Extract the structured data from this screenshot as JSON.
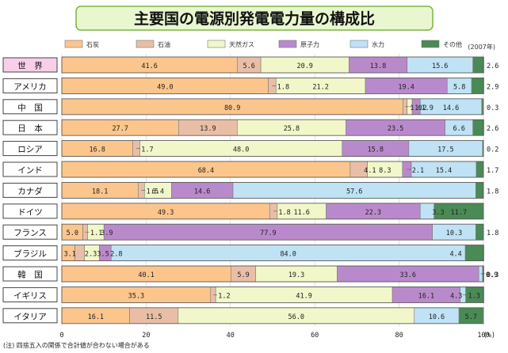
{
  "chart_data": {
    "type": "bar",
    "orientation": "horizontal",
    "stacked": true,
    "title": "主要国の電源別発電電力量の構成比",
    "year_note": "(2007年)",
    "note": "(注) 四捨五入の関係で合計値が合わない場合がある",
    "x_unit": "(%)",
    "xlim": [
      0,
      100
    ],
    "x_ticks": [
      0,
      20,
      40,
      60,
      80,
      100
    ],
    "legend_position": "top",
    "categories": [
      "世界",
      "アメリカ",
      "中国",
      "日本",
      "ロシア",
      "インド",
      "カナダ",
      "ドイツ",
      "フランス",
      "ブラジル",
      "韓国",
      "イギリス",
      "イタリア"
    ],
    "category_display": [
      "世　界",
      "アメリカ",
      "中　国",
      "日　本",
      "ロシア",
      "インド",
      "カナダ",
      "ドイツ",
      "フランス",
      "ブラジル",
      "韓　国",
      "イギリス",
      "イタリア"
    ],
    "series": [
      {
        "name": "石炭",
        "color": "#fbc58c",
        "values": [
          41.6,
          49.0,
          80.9,
          27.7,
          16.8,
          68.4,
          18.1,
          49.3,
          5.0,
          3.1,
          40.1,
          35.3,
          16.1
        ]
      },
      {
        "name": "石油",
        "color": "#e8bfa6",
        "values": [
          5.6,
          1.8,
          1.0,
          13.9,
          1.7,
          4.1,
          1.5,
          1.8,
          1.1,
          2.3,
          5.9,
          1.2,
          11.5
        ]
      },
      {
        "name": "天然ガス",
        "color": "#f1f7c9",
        "values": [
          20.9,
          21.2,
          1.2,
          25.8,
          48.0,
          8.3,
          6.4,
          11.6,
          3.9,
          3.5,
          19.3,
          41.9,
          56.0
        ]
      },
      {
        "name": "原子力",
        "color": "#b98acb",
        "values": [
          13.8,
          19.4,
          1.9,
          23.5,
          15.8,
          2.1,
          14.6,
          22.3,
          77.9,
          2.8,
          33.6,
          16.1,
          0.0
        ]
      },
      {
        "name": "水力",
        "color": "#bfe2f5",
        "values": [
          15.6,
          5.8,
          14.6,
          6.6,
          17.5,
          15.4,
          57.6,
          3.3,
          10.3,
          84.0,
          0.9,
          1.3,
          10.6
        ]
      },
      {
        "name": "その他",
        "color": "#4a8a55",
        "values": [
          2.6,
          2.9,
          0.3,
          2.6,
          0.2,
          1.7,
          1.8,
          11.7,
          1.8,
          4.4,
          0.3,
          4.3,
          5.7
        ]
      }
    ],
    "labels": {
      "coal": [
        "41.6",
        "49.0",
        "80.9",
        "27.7",
        "16.8",
        "68.4",
        "18.1",
        "49.3",
        "5.0",
        "3.1",
        "40.1",
        "35.3",
        "16.1"
      ],
      "oil": [
        "5.6",
        "1.8",
        "1.0",
        "13.9",
        "1.7",
        "4.1",
        "1.5",
        "1.8",
        "1.1",
        "2.3",
        "5.9",
        "1.2",
        "11.5"
      ],
      "gas": [
        "20.9",
        "21.2",
        "1.2",
        "25.8",
        "48.0",
        "8.3",
        "6.4",
        "11.6",
        "3.9",
        "3.5",
        "19.3",
        "41.9",
        "56.0"
      ],
      "nuclear": [
        "13.8",
        "19.4",
        "1.9",
        "23.5",
        "15.8",
        "2.1",
        "14.6",
        "22.3",
        "77.9",
        "2.8",
        "33.6",
        "16.1",
        ""
      ],
      "hydro": [
        "15.6",
        "5.8",
        "14.6",
        "6.6",
        "17.5",
        "15.4",
        "57.6",
        "3.3",
        "10.3",
        "84.0",
        "0.9",
        "1.3",
        "10.6"
      ],
      "other_inside": [
        "",
        "",
        "",
        "",
        "",
        "",
        "",
        "11.7",
        "",
        "4.4",
        "",
        "4.3",
        "5.7"
      ],
      "other_outside": [
        "2.6",
        "2.9",
        "0.3",
        "2.6",
        "0.2",
        "1.7",
        "1.8",
        "",
        "1.8",
        "",
        "0.3",
        "",
        ""
      ]
    }
  }
}
